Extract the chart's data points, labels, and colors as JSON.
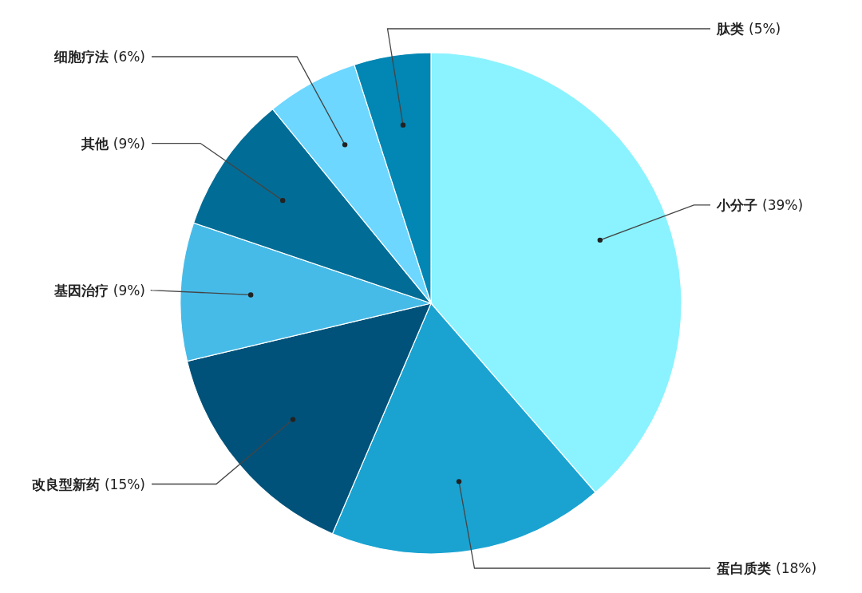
{
  "chart_data": {
    "type": "pie",
    "categories": [
      "小分子",
      "蛋白质类",
      "改良型新药",
      "基因治疗",
      "其他",
      "细胞疗法",
      "肽类"
    ],
    "values": [
      39,
      18,
      15,
      9,
      9,
      6,
      5
    ],
    "colors": [
      "#8af3ff",
      "#1aa3d1",
      "#01527a",
      "#47bbe8",
      "#016d96",
      "#6dd7ff",
      "#0286b3"
    ],
    "value_labels": [
      "(39%)",
      "(18%)",
      "(15%)",
      "(9%)",
      "(9%)",
      "(6%)",
      "(5%)"
    ]
  }
}
